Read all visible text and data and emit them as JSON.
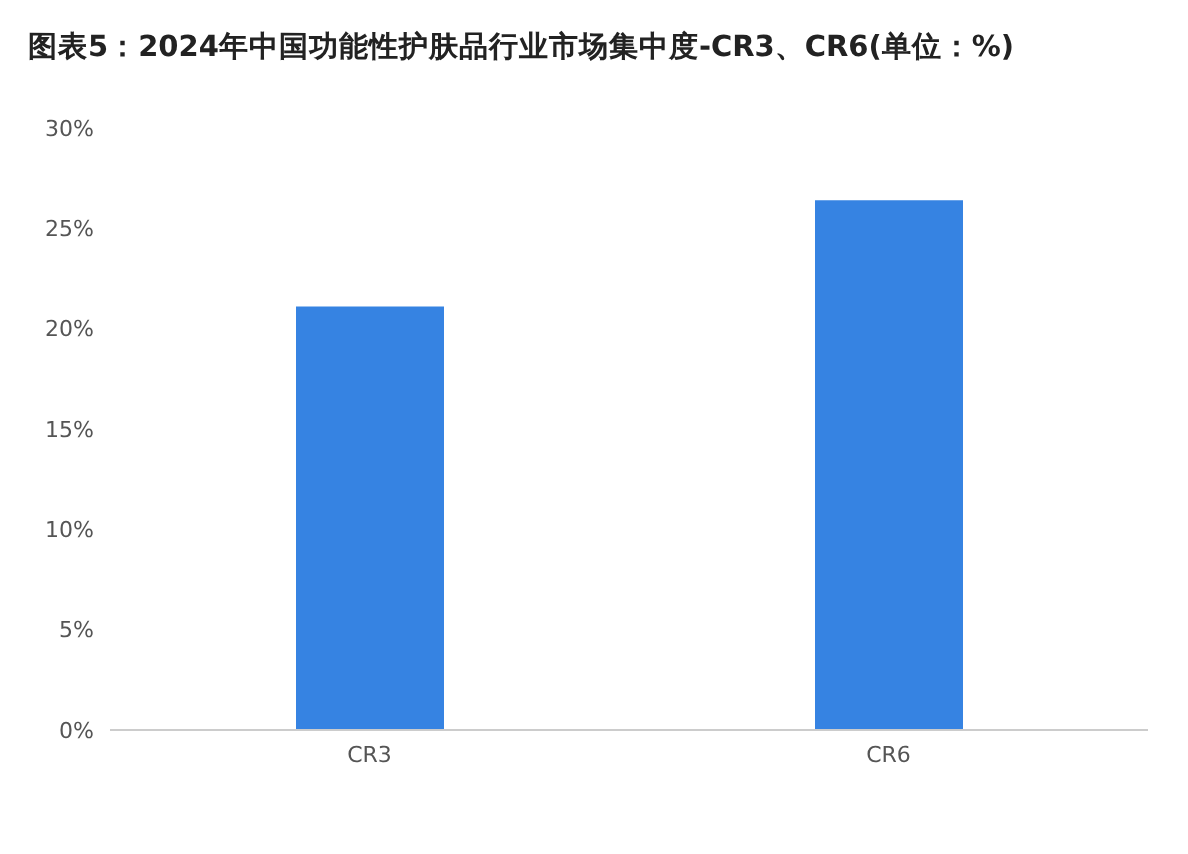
{
  "chart_data": {
    "type": "bar",
    "title": "图表5：2024年中国功能性护肤品行业市场集中度-CR3、CR6(单位：%)",
    "categories": [
      "CR3",
      "CR6"
    ],
    "values": [
      21.1,
      26.4
    ],
    "color": "#3683e2",
    "ylim": [
      0,
      30
    ],
    "yticks": [
      {
        "value": 0,
        "label": "0%"
      },
      {
        "value": 5,
        "label": "5%"
      },
      {
        "value": 10,
        "label": "10%"
      },
      {
        "value": 15,
        "label": "15%"
      },
      {
        "value": 20,
        "label": "20%"
      },
      {
        "value": 25,
        "label": "25%"
      },
      {
        "value": 30,
        "label": "30%"
      }
    ],
    "grid": false
  }
}
